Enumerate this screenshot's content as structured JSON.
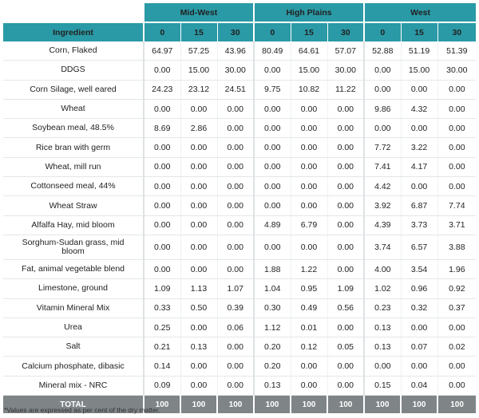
{
  "table": {
    "ingredient_header": "Ingredient",
    "regions": [
      "Mid-West",
      "High Plains",
      "West"
    ],
    "levels": [
      "0",
      "15",
      "30",
      "0",
      "15",
      "30",
      "0",
      "15",
      "30"
    ],
    "rows": [
      {
        "name": "Corn, Flaked",
        "values": [
          "64.97",
          "57.25",
          "43.96",
          "80.49",
          "64.61",
          "57.07",
          "52.88",
          "51.19",
          "51.39"
        ]
      },
      {
        "name": "DDGS",
        "values": [
          "0.00",
          "15.00",
          "30.00",
          "0.00",
          "15.00",
          "30.00",
          "0.00",
          "15.00",
          "30.00"
        ]
      },
      {
        "name": "Corn Silage, well eared",
        "values": [
          "24.23",
          "23.12",
          "24.51",
          "9.75",
          "10.82",
          "11.22",
          "0.00",
          "0.00",
          "0.00"
        ]
      },
      {
        "name": "Wheat",
        "values": [
          "0.00",
          "0.00",
          "0.00",
          "0.00",
          "0.00",
          "0.00",
          "9.86",
          "4.32",
          "0.00"
        ]
      },
      {
        "name": "Soybean meal, 48.5%",
        "values": [
          "8.69",
          "2.86",
          "0.00",
          "0.00",
          "0.00",
          "0.00",
          "0.00",
          "0.00",
          "0.00"
        ]
      },
      {
        "name": "Rice bran with germ",
        "values": [
          "0.00",
          "0.00",
          "0.00",
          "0.00",
          "0.00",
          "0.00",
          "7.72",
          "3.22",
          "0.00"
        ]
      },
      {
        "name": "Wheat, mill run",
        "values": [
          "0.00",
          "0.00",
          "0.00",
          "0.00",
          "0.00",
          "0.00",
          "7.41",
          "4.17",
          "0.00"
        ]
      },
      {
        "name": "Cottonseed meal, 44%",
        "values": [
          "0.00",
          "0.00",
          "0.00",
          "0.00",
          "0.00",
          "0.00",
          "4.42",
          "0.00",
          "0.00"
        ]
      },
      {
        "name": "Wheat Straw",
        "values": [
          "0.00",
          "0.00",
          "0.00",
          "0.00",
          "0.00",
          "0.00",
          "3.92",
          "6.87",
          "7.74"
        ]
      },
      {
        "name": "Alfalfa Hay, mid bloom",
        "values": [
          "0.00",
          "0.00",
          "0.00",
          "4.89",
          "6.79",
          "0.00",
          "4.39",
          "3.73",
          "3.71"
        ]
      },
      {
        "name": "Sorghum-Sudan grass, mid bloom",
        "values": [
          "0.00",
          "0.00",
          "0.00",
          "0.00",
          "0.00",
          "0.00",
          "3.74",
          "6.57",
          "3.88"
        ]
      },
      {
        "name": "Fat, animal vegetable blend",
        "values": [
          "0.00",
          "0.00",
          "0.00",
          "1.88",
          "1.22",
          "0.00",
          "4.00",
          "3.54",
          "1.96"
        ]
      },
      {
        "name": "Limestone, ground",
        "values": [
          "1.09",
          "1.13",
          "1.07",
          "1.04",
          "0.95",
          "1.09",
          "1.02",
          "0.96",
          "0.92"
        ]
      },
      {
        "name": "Vitamin Mineral Mix",
        "values": [
          "0.33",
          "0.50",
          "0.39",
          "0.30",
          "0.49",
          "0.56",
          "0.23",
          "0.32",
          "0.37"
        ]
      },
      {
        "name": "Urea",
        "values": [
          "0.25",
          "0.00",
          "0.06",
          "1.12",
          "0.01",
          "0.00",
          "0.13",
          "0.00",
          "0.00"
        ]
      },
      {
        "name": "Salt",
        "values": [
          "0.21",
          "0.13",
          "0.00",
          "0.20",
          "0.12",
          "0.05",
          "0.13",
          "0.07",
          "0.02"
        ]
      },
      {
        "name": "Calcium phosphate, dibasic",
        "values": [
          "0.14",
          "0.00",
          "0.00",
          "0.20",
          "0.00",
          "0.00",
          "0.00",
          "0.00",
          "0.00"
        ]
      },
      {
        "name": "Mineral mix - NRC",
        "values": [
          "0.09",
          "0.00",
          "0.00",
          "0.13",
          "0.00",
          "0.00",
          "0.15",
          "0.04",
          "0.00"
        ]
      }
    ],
    "total": {
      "name": "TOTAL",
      "values": [
        "100",
        "100",
        "100",
        "100",
        "100",
        "100",
        "100",
        "100",
        "100"
      ]
    }
  },
  "footnote": "*Values are expressed as per cent of the dry matter.",
  "colors": {
    "header": "#2a9aa6",
    "total": "#7f8487"
  }
}
